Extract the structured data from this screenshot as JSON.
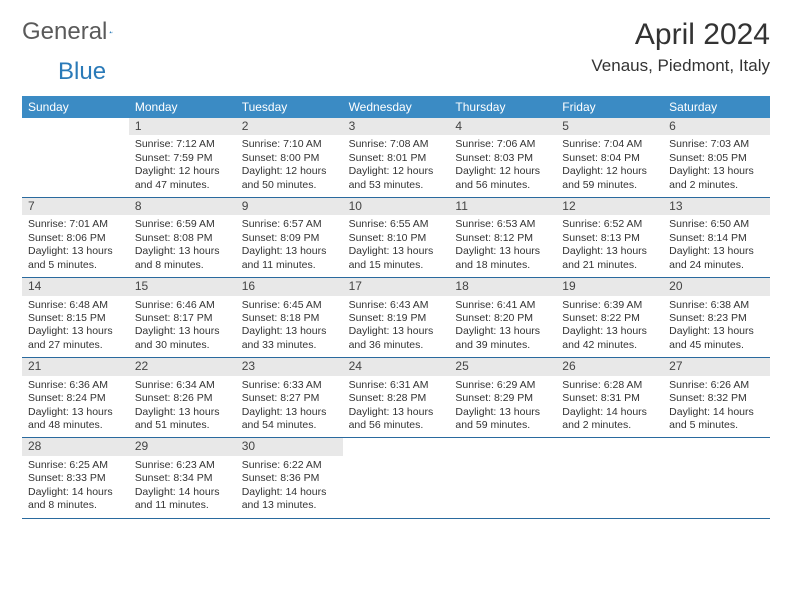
{
  "logo": {
    "text1": "General",
    "text2": "Blue"
  },
  "title": "April 2024",
  "location": "Venaus, Piedmont, Italy",
  "colors": {
    "header_bg": "#3b8bc4",
    "header_text": "#ffffff",
    "week_border": "#2a6a9e",
    "num_bg": "#e8e8e8",
    "body_text": "#333333",
    "logo_gray": "#5a5a5a",
    "logo_blue": "#2a7ab8",
    "page_bg": "#ffffff"
  },
  "fonts": {
    "title_size": 30,
    "location_size": 17,
    "day_header_size": 12,
    "day_num_size": 12,
    "cell_size": 10.5
  },
  "day_names": [
    "Sunday",
    "Monday",
    "Tuesday",
    "Wednesday",
    "Thursday",
    "Friday",
    "Saturday"
  ],
  "weeks": [
    [
      {
        "num": "",
        "lines": []
      },
      {
        "num": "1",
        "lines": [
          "Sunrise: 7:12 AM",
          "Sunset: 7:59 PM",
          "Daylight: 12 hours and 47 minutes."
        ]
      },
      {
        "num": "2",
        "lines": [
          "Sunrise: 7:10 AM",
          "Sunset: 8:00 PM",
          "Daylight: 12 hours and 50 minutes."
        ]
      },
      {
        "num": "3",
        "lines": [
          "Sunrise: 7:08 AM",
          "Sunset: 8:01 PM",
          "Daylight: 12 hours and 53 minutes."
        ]
      },
      {
        "num": "4",
        "lines": [
          "Sunrise: 7:06 AM",
          "Sunset: 8:03 PM",
          "Daylight: 12 hours and 56 minutes."
        ]
      },
      {
        "num": "5",
        "lines": [
          "Sunrise: 7:04 AM",
          "Sunset: 8:04 PM",
          "Daylight: 12 hours and 59 minutes."
        ]
      },
      {
        "num": "6",
        "lines": [
          "Sunrise: 7:03 AM",
          "Sunset: 8:05 PM",
          "Daylight: 13 hours and 2 minutes."
        ]
      }
    ],
    [
      {
        "num": "7",
        "lines": [
          "Sunrise: 7:01 AM",
          "Sunset: 8:06 PM",
          "Daylight: 13 hours and 5 minutes."
        ]
      },
      {
        "num": "8",
        "lines": [
          "Sunrise: 6:59 AM",
          "Sunset: 8:08 PM",
          "Daylight: 13 hours and 8 minutes."
        ]
      },
      {
        "num": "9",
        "lines": [
          "Sunrise: 6:57 AM",
          "Sunset: 8:09 PM",
          "Daylight: 13 hours and 11 minutes."
        ]
      },
      {
        "num": "10",
        "lines": [
          "Sunrise: 6:55 AM",
          "Sunset: 8:10 PM",
          "Daylight: 13 hours and 15 minutes."
        ]
      },
      {
        "num": "11",
        "lines": [
          "Sunrise: 6:53 AM",
          "Sunset: 8:12 PM",
          "Daylight: 13 hours and 18 minutes."
        ]
      },
      {
        "num": "12",
        "lines": [
          "Sunrise: 6:52 AM",
          "Sunset: 8:13 PM",
          "Daylight: 13 hours and 21 minutes."
        ]
      },
      {
        "num": "13",
        "lines": [
          "Sunrise: 6:50 AM",
          "Sunset: 8:14 PM",
          "Daylight: 13 hours and 24 minutes."
        ]
      }
    ],
    [
      {
        "num": "14",
        "lines": [
          "Sunrise: 6:48 AM",
          "Sunset: 8:15 PM",
          "Daylight: 13 hours and 27 minutes."
        ]
      },
      {
        "num": "15",
        "lines": [
          "Sunrise: 6:46 AM",
          "Sunset: 8:17 PM",
          "Daylight: 13 hours and 30 minutes."
        ]
      },
      {
        "num": "16",
        "lines": [
          "Sunrise: 6:45 AM",
          "Sunset: 8:18 PM",
          "Daylight: 13 hours and 33 minutes."
        ]
      },
      {
        "num": "17",
        "lines": [
          "Sunrise: 6:43 AM",
          "Sunset: 8:19 PM",
          "Daylight: 13 hours and 36 minutes."
        ]
      },
      {
        "num": "18",
        "lines": [
          "Sunrise: 6:41 AM",
          "Sunset: 8:20 PM",
          "Daylight: 13 hours and 39 minutes."
        ]
      },
      {
        "num": "19",
        "lines": [
          "Sunrise: 6:39 AM",
          "Sunset: 8:22 PM",
          "Daylight: 13 hours and 42 minutes."
        ]
      },
      {
        "num": "20",
        "lines": [
          "Sunrise: 6:38 AM",
          "Sunset: 8:23 PM",
          "Daylight: 13 hours and 45 minutes."
        ]
      }
    ],
    [
      {
        "num": "21",
        "lines": [
          "Sunrise: 6:36 AM",
          "Sunset: 8:24 PM",
          "Daylight: 13 hours and 48 minutes."
        ]
      },
      {
        "num": "22",
        "lines": [
          "Sunrise: 6:34 AM",
          "Sunset: 8:26 PM",
          "Daylight: 13 hours and 51 minutes."
        ]
      },
      {
        "num": "23",
        "lines": [
          "Sunrise: 6:33 AM",
          "Sunset: 8:27 PM",
          "Daylight: 13 hours and 54 minutes."
        ]
      },
      {
        "num": "24",
        "lines": [
          "Sunrise: 6:31 AM",
          "Sunset: 8:28 PM",
          "Daylight: 13 hours and 56 minutes."
        ]
      },
      {
        "num": "25",
        "lines": [
          "Sunrise: 6:29 AM",
          "Sunset: 8:29 PM",
          "Daylight: 13 hours and 59 minutes."
        ]
      },
      {
        "num": "26",
        "lines": [
          "Sunrise: 6:28 AM",
          "Sunset: 8:31 PM",
          "Daylight: 14 hours and 2 minutes."
        ]
      },
      {
        "num": "27",
        "lines": [
          "Sunrise: 6:26 AM",
          "Sunset: 8:32 PM",
          "Daylight: 14 hours and 5 minutes."
        ]
      }
    ],
    [
      {
        "num": "28",
        "lines": [
          "Sunrise: 6:25 AM",
          "Sunset: 8:33 PM",
          "Daylight: 14 hours and 8 minutes."
        ]
      },
      {
        "num": "29",
        "lines": [
          "Sunrise: 6:23 AM",
          "Sunset: 8:34 PM",
          "Daylight: 14 hours and 11 minutes."
        ]
      },
      {
        "num": "30",
        "lines": [
          "Sunrise: 6:22 AM",
          "Sunset: 8:36 PM",
          "Daylight: 14 hours and 13 minutes."
        ]
      },
      {
        "num": "",
        "lines": []
      },
      {
        "num": "",
        "lines": []
      },
      {
        "num": "",
        "lines": []
      },
      {
        "num": "",
        "lines": []
      }
    ]
  ]
}
